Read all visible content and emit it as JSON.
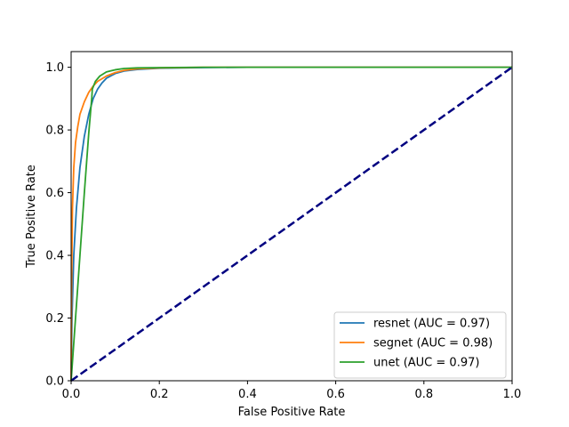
{
  "chart_data": {
    "type": "line",
    "title": "",
    "xlabel": "False Positive Rate",
    "ylabel": "True Positive Rate",
    "xlim": [
      0.0,
      1.0
    ],
    "ylim": [
      0.0,
      1.05
    ],
    "xticks": [
      0.0,
      0.2,
      0.4,
      0.6,
      0.8,
      1.0
    ],
    "yticks": [
      0.0,
      0.2,
      0.4,
      0.6,
      0.8,
      1.0
    ],
    "tick_labels": [
      "0.0",
      "0.2",
      "0.4",
      "0.6",
      "0.8",
      "1.0"
    ],
    "grid": false,
    "legend_position": "lower-right",
    "series": [
      {
        "name": "resnet (AUC = 0.97)",
        "color": "#1f77b4",
        "x": [
          0.0,
          0.002,
          0.006,
          0.012,
          0.02,
          0.03,
          0.04,
          0.05,
          0.06,
          0.07,
          0.08,
          0.1,
          0.12,
          0.15,
          0.2,
          0.3,
          0.4,
          0.6,
          0.8,
          1.0
        ],
        "y": [
          0.0,
          0.2,
          0.4,
          0.55,
          0.68,
          0.78,
          0.85,
          0.9,
          0.93,
          0.95,
          0.965,
          0.98,
          0.988,
          0.993,
          0.997,
          0.999,
          1.0,
          1.0,
          1.0,
          1.0
        ]
      },
      {
        "name": "segnet (AUC = 0.98)",
        "color": "#ff7f0e",
        "x": [
          0.0,
          0.001,
          0.003,
          0.006,
          0.01,
          0.015,
          0.02,
          0.03,
          0.04,
          0.05,
          0.06,
          0.08,
          0.1,
          0.12,
          0.15,
          0.2,
          0.3,
          0.5,
          0.7,
          1.0
        ],
        "y": [
          0.0,
          0.3,
          0.55,
          0.68,
          0.76,
          0.81,
          0.85,
          0.89,
          0.92,
          0.94,
          0.955,
          0.972,
          0.983,
          0.99,
          0.995,
          0.998,
          1.0,
          1.0,
          1.0,
          1.0
        ]
      },
      {
        "name": "unet (AUC = 0.97)",
        "color": "#2ca02c",
        "x": [
          0.0,
          0.01,
          0.02,
          0.03,
          0.04,
          0.047,
          0.048,
          0.055,
          0.065,
          0.08,
          0.1,
          0.12,
          0.15,
          0.2,
          0.3,
          0.5,
          0.7,
          1.0
        ],
        "y": [
          0.0,
          0.2,
          0.4,
          0.6,
          0.79,
          0.905,
          0.93,
          0.955,
          0.972,
          0.985,
          0.992,
          0.996,
          0.998,
          0.999,
          1.0,
          1.0,
          1.0,
          1.0
        ]
      },
      {
        "color": "#000080",
        "style": "dashed",
        "x": [
          0.0,
          1.0
        ],
        "y": [
          0.0,
          1.0
        ]
      }
    ]
  }
}
